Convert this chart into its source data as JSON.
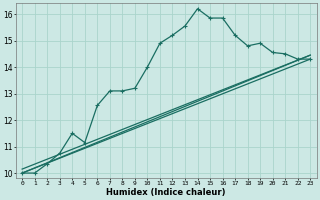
{
  "title": "",
  "xlabel": "Humidex (Indice chaleur)",
  "ylabel": "",
  "bg_color": "#cce8e4",
  "grid_color": "#aad4cc",
  "line_color": "#1a6e62",
  "xlim": [
    -0.5,
    23.5
  ],
  "ylim": [
    9.8,
    16.4
  ],
  "xticks": [
    0,
    1,
    2,
    3,
    4,
    5,
    6,
    7,
    8,
    9,
    10,
    11,
    12,
    13,
    14,
    15,
    16,
    17,
    18,
    19,
    20,
    21,
    22,
    23
  ],
  "yticks": [
    10,
    11,
    12,
    13,
    14,
    15,
    16
  ],
  "curve1_x": [
    0,
    1,
    2,
    3,
    4,
    5,
    6,
    7,
    8,
    9,
    10,
    11,
    12,
    13,
    14,
    15,
    16,
    17,
    18,
    19,
    20,
    21,
    22,
    23
  ],
  "curve1_y": [
    10.0,
    10.0,
    10.35,
    10.75,
    11.5,
    11.15,
    12.55,
    13.1,
    13.1,
    13.2,
    14.0,
    14.9,
    15.2,
    15.55,
    16.2,
    15.85,
    15.85,
    15.2,
    14.8,
    14.9,
    14.55,
    14.5,
    14.3,
    14.3
  ],
  "line2_x": [
    0,
    23
  ],
  "line2_y": [
    10.0,
    14.3
  ],
  "line3_x": [
    0,
    23
  ],
  "line3_y": [
    10.15,
    14.45
  ],
  "line4_x": [
    0,
    23
  ],
  "line4_y": [
    10.0,
    14.45
  ]
}
